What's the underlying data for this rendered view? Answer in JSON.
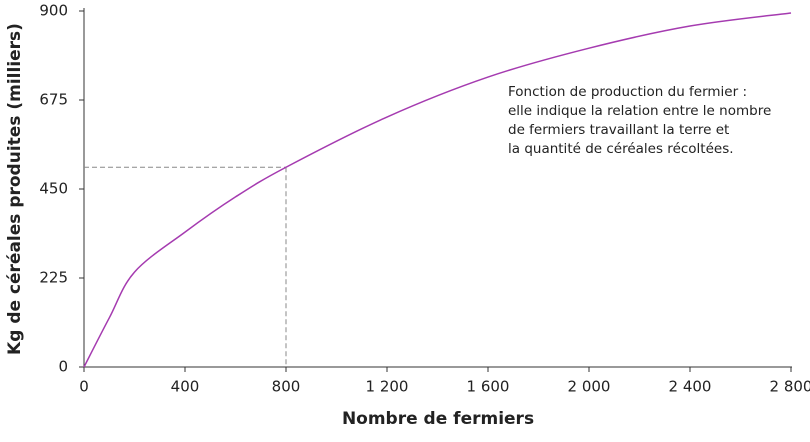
{
  "chart_data": {
    "type": "line",
    "x_label": "Nombre de fermiers",
    "y_label": "Kg de céréales produites (milliers)",
    "x": [
      0,
      100,
      200,
      400,
      600,
      800,
      1200,
      1600,
      2000,
      2400,
      2800
    ],
    "series": [
      {
        "color": "#a53bb0",
        "values": [
          0,
          124,
          240,
          341,
          430,
          505,
          632,
          733,
          806,
          862,
          895
        ]
      }
    ],
    "xlim": [
      0,
      2800
    ],
    "ylim": [
      0,
      900
    ],
    "xticks": [
      0,
      400,
      800,
      {
        "value": 1200,
        "label": "1 200"
      },
      {
        "value": 1600,
        "label": "1 600"
      },
      {
        "value": 2000,
        "label": "2 000"
      },
      {
        "value": 2400,
        "label": "2 400"
      },
      {
        "value": 2800,
        "label": "2 800"
      }
    ],
    "yticks": [
      0,
      225,
      450,
      675,
      900
    ],
    "guide": {
      "x": 800,
      "y": 505
    },
    "annotation": [
      "Fonction de production du fermier :",
      "elle indique la relation entre le nombre",
      "de fermiers travaillant la terre et",
      "la quantité de céréales récoltées."
    ]
  }
}
